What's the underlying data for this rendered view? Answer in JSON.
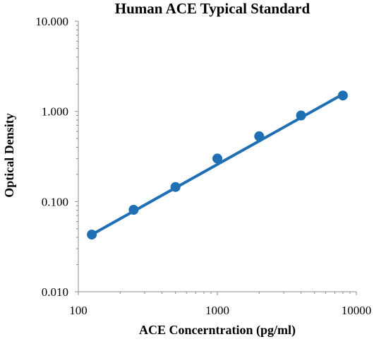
{
  "chart_data": {
    "type": "scatter",
    "title": "Human ACE Typical Standard",
    "xlabel": "ACE Concerntration (pg/ml)",
    "ylabel": "Optical Density",
    "x_scale": "log",
    "y_scale": "log",
    "xlim": [
      100,
      10000
    ],
    "ylim": [
      0.01,
      10
    ],
    "x_ticks": [
      {
        "value": 100,
        "label": "100"
      },
      {
        "value": 1000,
        "label": "1000"
      },
      {
        "value": 10000,
        "label": "10000"
      }
    ],
    "y_ticks": [
      {
        "value": 10,
        "label": "10.000"
      },
      {
        "value": 1,
        "label": "1.000"
      },
      {
        "value": 0.1,
        "label": "0.100"
      },
      {
        "value": 0.01,
        "label": "0.010"
      }
    ],
    "grid": false,
    "legend": "none",
    "series": [
      {
        "color": "#1f6fb5",
        "x": [
          125,
          250,
          500,
          1000,
          2000,
          4000,
          8000
        ],
        "y": [
          0.043,
          0.081,
          0.145,
          0.3,
          0.53,
          0.9,
          1.5
        ]
      }
    ],
    "trendline": {
      "color": "#1f6fb5",
      "x": [
        125,
        8000
      ],
      "y": [
        0.043,
        1.55
      ]
    }
  }
}
